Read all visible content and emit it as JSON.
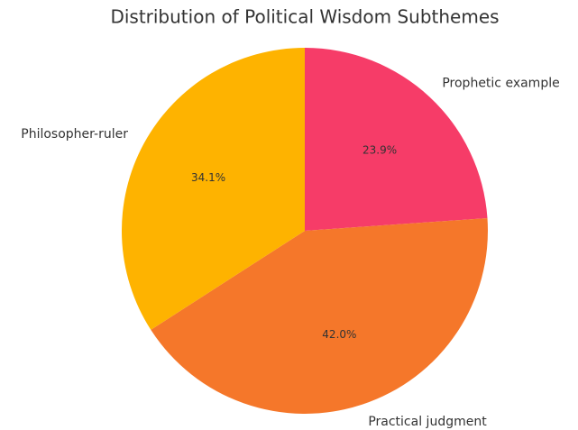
{
  "chart_data": {
    "type": "pie",
    "title": "Distribution of Political Wisdom Subthemes",
    "categories": [
      "Prophetic example",
      "Practical judgment",
      "Philosopher-ruler"
    ],
    "values": [
      23.9,
      42.0,
      34.1
    ],
    "value_labels": [
      "23.9%",
      "42.0%",
      "34.1%"
    ],
    "colors": [
      "#f63c68",
      "#f5772a",
      "#feb300"
    ]
  }
}
